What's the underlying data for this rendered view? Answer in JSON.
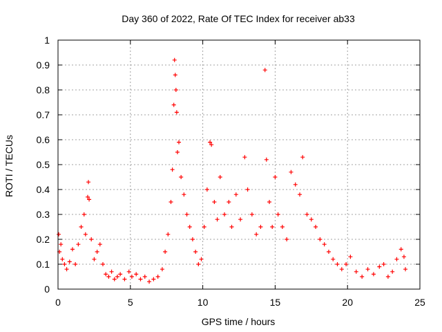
{
  "chart_data": {
    "type": "scatter",
    "title": "Day 360 of 2022, Rate Of TEC Index for receiver ab33",
    "xlabel": "GPS time / hours",
    "ylabel": "ROTI / TECUs",
    "xlim": [
      0,
      25
    ],
    "ylim": [
      0,
      1
    ],
    "xticks": [
      "0",
      "5",
      "10",
      "15",
      "20",
      "25"
    ],
    "yticks": [
      "0",
      "0.1",
      "0.2",
      "0.3",
      "0.4",
      "0.5",
      "0.6",
      "0.7",
      "0.8",
      "0.9",
      "1"
    ],
    "grid": true,
    "marker": "+",
    "color": "#ff0000",
    "series": [
      {
        "values": [
          [
            0.05,
            0.22
          ],
          [
            0.1,
            0.15
          ],
          [
            0.2,
            0.18
          ],
          [
            0.3,
            0.12
          ],
          [
            0.45,
            0.1
          ],
          [
            0.6,
            0.08
          ],
          [
            0.8,
            0.11
          ],
          [
            1.0,
            0.16
          ],
          [
            1.2,
            0.1
          ],
          [
            1.4,
            0.18
          ],
          [
            1.6,
            0.25
          ],
          [
            1.8,
            0.3
          ],
          [
            1.9,
            0.22
          ],
          [
            2.05,
            0.37
          ],
          [
            2.1,
            0.43
          ],
          [
            2.15,
            0.36
          ],
          [
            2.3,
            0.2
          ],
          [
            2.5,
            0.12
          ],
          [
            2.7,
            0.15
          ],
          [
            2.9,
            0.18
          ],
          [
            3.1,
            0.1
          ],
          [
            3.3,
            0.06
          ],
          [
            3.5,
            0.05
          ],
          [
            3.7,
            0.07
          ],
          [
            3.9,
            0.04
          ],
          [
            4.1,
            0.05
          ],
          [
            4.3,
            0.06
          ],
          [
            4.6,
            0.04
          ],
          [
            4.9,
            0.07
          ],
          [
            5.1,
            0.05
          ],
          [
            5.4,
            0.06
          ],
          [
            5.7,
            0.04
          ],
          [
            6.0,
            0.05
          ],
          [
            6.3,
            0.03
          ],
          [
            6.6,
            0.04
          ],
          [
            6.9,
            0.05
          ],
          [
            7.2,
            0.08
          ],
          [
            7.4,
            0.15
          ],
          [
            7.6,
            0.22
          ],
          [
            7.8,
            0.35
          ],
          [
            7.9,
            0.48
          ],
          [
            8.0,
            0.74
          ],
          [
            8.05,
            0.92
          ],
          [
            8.1,
            0.86
          ],
          [
            8.15,
            0.8
          ],
          [
            8.2,
            0.71
          ],
          [
            8.25,
            0.55
          ],
          [
            8.35,
            0.59
          ],
          [
            8.5,
            0.45
          ],
          [
            8.7,
            0.38
          ],
          [
            8.9,
            0.3
          ],
          [
            9.1,
            0.25
          ],
          [
            9.3,
            0.2
          ],
          [
            9.5,
            0.15
          ],
          [
            9.7,
            0.1
          ],
          [
            9.9,
            0.12
          ],
          [
            10.1,
            0.25
          ],
          [
            10.3,
            0.4
          ],
          [
            10.5,
            0.59
          ],
          [
            10.6,
            0.58
          ],
          [
            10.8,
            0.35
          ],
          [
            11.0,
            0.28
          ],
          [
            11.2,
            0.45
          ],
          [
            11.5,
            0.3
          ],
          [
            11.8,
            0.35
          ],
          [
            12.0,
            0.25
          ],
          [
            12.3,
            0.38
          ],
          [
            12.6,
            0.28
          ],
          [
            12.9,
            0.53
          ],
          [
            13.1,
            0.4
          ],
          [
            13.4,
            0.3
          ],
          [
            13.7,
            0.22
          ],
          [
            14.0,
            0.25
          ],
          [
            14.3,
            0.88
          ],
          [
            14.4,
            0.52
          ],
          [
            14.6,
            0.35
          ],
          [
            14.8,
            0.25
          ],
          [
            15.0,
            0.45
          ],
          [
            15.2,
            0.3
          ],
          [
            15.5,
            0.25
          ],
          [
            15.8,
            0.2
          ],
          [
            16.1,
            0.47
          ],
          [
            16.4,
            0.42
          ],
          [
            16.7,
            0.38
          ],
          [
            16.9,
            0.53
          ],
          [
            17.2,
            0.3
          ],
          [
            17.5,
            0.28
          ],
          [
            17.8,
            0.25
          ],
          [
            18.1,
            0.2
          ],
          [
            18.4,
            0.18
          ],
          [
            18.7,
            0.15
          ],
          [
            19.0,
            0.12
          ],
          [
            19.3,
            0.1
          ],
          [
            19.6,
            0.08
          ],
          [
            19.9,
            0.1
          ],
          [
            20.2,
            0.13
          ],
          [
            20.6,
            0.07
          ],
          [
            21.0,
            0.05
          ],
          [
            21.4,
            0.08
          ],
          [
            21.8,
            0.06
          ],
          [
            22.2,
            0.09
          ],
          [
            22.5,
            0.1
          ],
          [
            22.8,
            0.05
          ],
          [
            23.1,
            0.07
          ],
          [
            23.4,
            0.12
          ],
          [
            23.7,
            0.16
          ],
          [
            23.9,
            0.13
          ],
          [
            24.0,
            0.08
          ]
        ]
      }
    ]
  }
}
